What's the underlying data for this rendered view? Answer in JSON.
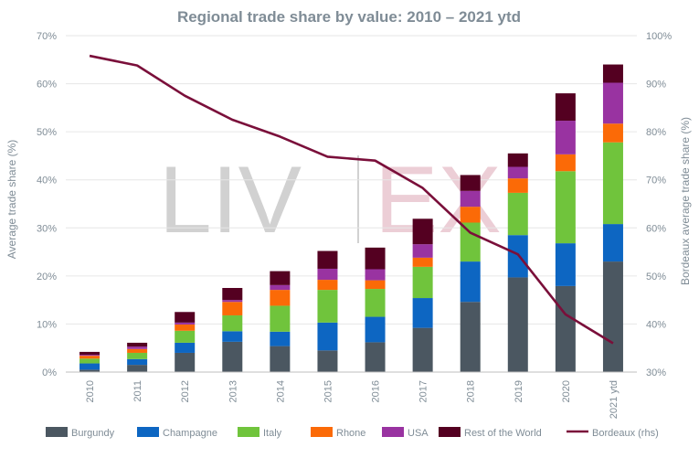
{
  "chart_data": {
    "type": "bar",
    "stacked": true,
    "title": "Regional trade share by value: 2010 – 2021 ytd",
    "ylabel": "Average trade share (%)",
    "y2label": "Bordeaux average trade share (%)",
    "ylim": [
      0,
      70
    ],
    "y2lim": [
      30,
      100
    ],
    "yticks": [
      "0%",
      "10%",
      "20%",
      "30%",
      "40%",
      "50%",
      "60%",
      "70%"
    ],
    "y2ticks": [
      "30%",
      "40%",
      "50%",
      "60%",
      "70%",
      "80%",
      "90%",
      "100%"
    ],
    "categories": [
      "2010",
      "2011",
      "2012",
      "2013",
      "2014",
      "2015",
      "2016",
      "2017",
      "2018",
      "2019",
      "2020",
      "2021 ytd"
    ],
    "series": [
      {
        "name": "Burgundy",
        "color": "#4b5761",
        "values": [
          0.5,
          1.5,
          4.0,
          6.3,
          5.4,
          4.5,
          6.2,
          9.2,
          14.6,
          19.7,
          17.9,
          23.0
        ]
      },
      {
        "name": "Champagne",
        "color": "#0d66c2",
        "values": [
          1.3,
          1.2,
          2.1,
          2.2,
          3.0,
          5.8,
          5.3,
          6.2,
          8.4,
          8.8,
          8.9,
          7.8
        ]
      },
      {
        "name": "Italy",
        "color": "#70c43c",
        "values": [
          1.0,
          1.3,
          2.5,
          3.3,
          5.4,
          6.8,
          5.8,
          6.5,
          8.1,
          8.8,
          15.0,
          17.0
        ]
      },
      {
        "name": "Rhone",
        "color": "#fb6a07",
        "values": [
          0.6,
          0.8,
          1.3,
          2.8,
          3.3,
          2.1,
          1.8,
          1.9,
          3.3,
          3.0,
          3.5,
          3.9
        ]
      },
      {
        "name": "USA",
        "color": "#9933a1",
        "values": [
          0.2,
          0.5,
          0.4,
          0.4,
          1.0,
          2.3,
          2.3,
          2.8,
          3.3,
          2.4,
          7.0,
          8.5
        ]
      },
      {
        "name": "Rest of the World",
        "color": "#540021",
        "values": [
          0.6,
          0.8,
          2.2,
          2.5,
          2.9,
          3.7,
          4.5,
          5.3,
          3.3,
          2.8,
          5.7,
          3.8
        ]
      }
    ],
    "line_series": {
      "name": "Bordeaux (rhs)",
      "color": "#7a0f3a",
      "axis": "right",
      "values": [
        95.8,
        93.8,
        87.5,
        82.5,
        79.0,
        74.8,
        74.0,
        68.3,
        59.0,
        54.5,
        42.0,
        36.0
      ]
    },
    "legend_position": "bottom",
    "watermark": "LIV|EX"
  }
}
